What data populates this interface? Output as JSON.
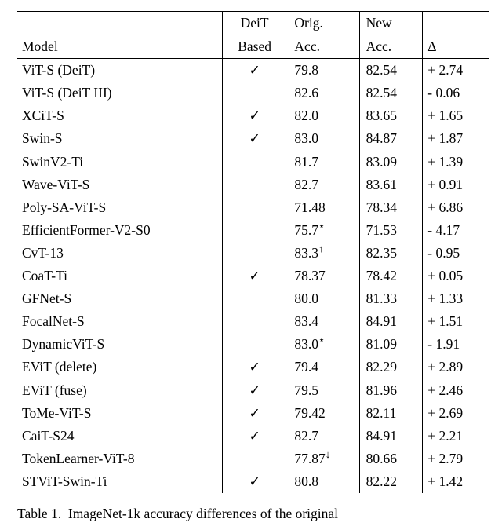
{
  "header": {
    "model": "Model",
    "deit_l1": "DeiT",
    "deit_l2": "Based",
    "orig_l1": "Orig.",
    "orig_l2": "Acc.",
    "new_l1": "New",
    "new_l2": "Acc.",
    "delta": "Δ"
  },
  "check_glyph": "✓",
  "rows": [
    {
      "model": "ViT-S (DeiT)",
      "deit": true,
      "orig": "79.8",
      "orig_mark": "",
      "new": "82.54",
      "delta": "+ 2.74"
    },
    {
      "model": "ViT-S (DeiT III)",
      "deit": false,
      "orig": "82.6",
      "orig_mark": "",
      "new": "82.54",
      "delta": "- 0.06"
    },
    {
      "model": "XCiT-S",
      "deit": true,
      "orig": "82.0",
      "orig_mark": "",
      "new": "83.65",
      "delta": "+ 1.65"
    },
    {
      "model": "Swin-S",
      "deit": true,
      "orig": "83.0",
      "orig_mark": "",
      "new": "84.87",
      "delta": "+ 1.87"
    },
    {
      "model": "SwinV2-Ti",
      "deit": false,
      "orig": "81.7",
      "orig_mark": "",
      "new": "83.09",
      "delta": "+ 1.39"
    },
    {
      "model": "Wave-ViT-S",
      "deit": false,
      "orig": "82.7",
      "orig_mark": "",
      "new": "83.61",
      "delta": "+ 0.91"
    },
    {
      "model": "Poly-SA-ViT-S",
      "deit": false,
      "orig": "71.48",
      "orig_mark": "",
      "new": "78.34",
      "delta": "+ 6.86"
    },
    {
      "model": "EfficientFormer-V2-S0",
      "deit": false,
      "orig": "75.7",
      "orig_mark": "⋆",
      "new": "71.53",
      "delta": "- 4.17"
    },
    {
      "model": "CvT-13",
      "deit": false,
      "orig": "83.3",
      "orig_mark": "↑",
      "new": "82.35",
      "delta": "- 0.95"
    },
    {
      "model": "CoaT-Ti",
      "deit": true,
      "orig": "78.37",
      "orig_mark": "",
      "new": "78.42",
      "delta": "+ 0.05"
    },
    {
      "model": "GFNet-S",
      "deit": false,
      "orig": "80.0",
      "orig_mark": "",
      "new": "81.33",
      "delta": "+ 1.33"
    },
    {
      "model": "FocalNet-S",
      "deit": false,
      "orig": "83.4",
      "orig_mark": "",
      "new": "84.91",
      "delta": "+ 1.51"
    },
    {
      "model": "DynamicViT-S",
      "deit": false,
      "orig": "83.0",
      "orig_mark": "⋆",
      "new": "81.09",
      "delta": "- 1.91"
    },
    {
      "model": "EViT (delete)",
      "deit": true,
      "orig": "79.4",
      "orig_mark": "",
      "new": "82.29",
      "delta": "+ 2.89"
    },
    {
      "model": "EViT (fuse)",
      "deit": true,
      "orig": "79.5",
      "orig_mark": "",
      "new": "81.96",
      "delta": "+ 2.46"
    },
    {
      "model": "ToMe-ViT-S",
      "deit": true,
      "orig": "79.42",
      "orig_mark": "",
      "new": "82.11",
      "delta": "+ 2.69"
    },
    {
      "model": "CaiT-S24",
      "deit": true,
      "orig": "82.7",
      "orig_mark": "",
      "new": "84.91",
      "delta": "+ 2.21"
    },
    {
      "model": "TokenLearner-ViT-8",
      "deit": false,
      "orig": "77.87",
      "orig_mark": "↓",
      "new": "80.66",
      "delta": "+ 2.79"
    },
    {
      "model": "STViT-Swin-Ti",
      "deit": true,
      "orig": "80.8",
      "orig_mark": "",
      "new": "82.22",
      "delta": "+ 1.42"
    }
  ],
  "caption": "Table 1.  ImageNet-1k accuracy differences of the original"
}
